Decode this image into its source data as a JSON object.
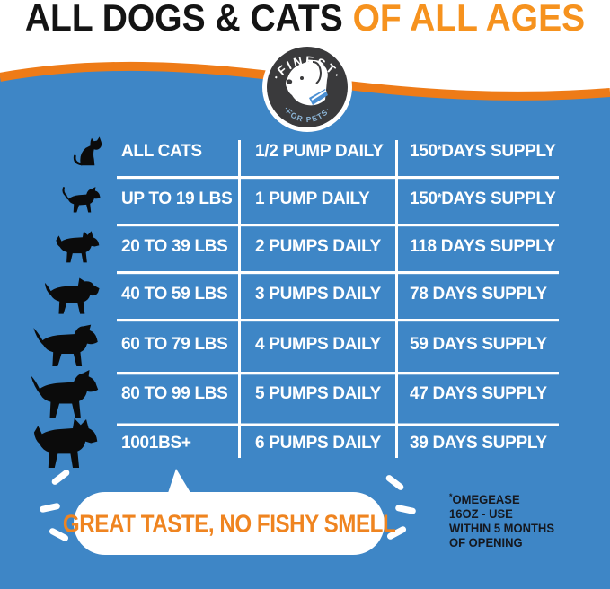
{
  "title": {
    "black": "ALL DOGS & CATS",
    "orange": "OF ALL AGES"
  },
  "logo": {
    "top_text": "·FINEST·",
    "bottom_text": "·FOR PETS·",
    "icon": "dog-head-icon"
  },
  "table": {
    "rows": [
      {
        "icon": "cat",
        "weight": "ALL CATS",
        "dose": "1/2 PUMP DAILY",
        "supply": "150* DAYS SUPPLY"
      },
      {
        "icon": "dog-small",
        "weight": "UP TO 19 LBS",
        "dose": "1 PUMP DAILY",
        "supply": "150* DAYS SUPPLY"
      },
      {
        "icon": "dog-terrier",
        "weight": "20 TO 39 LBS",
        "dose": "2 PUMPS DAILY",
        "supply": "118 DAYS SUPPLY"
      },
      {
        "icon": "dog-schnauzer",
        "weight": "40 TO 59 LBS",
        "dose": "3 PUMPS DAILY",
        "supply": "78 DAYS SUPPLY"
      },
      {
        "icon": "dog-airedale",
        "weight": "60 TO 79 LBS",
        "dose": "4 PUMPS DAILY",
        "supply": "59 DAYS SUPPLY"
      },
      {
        "icon": "dog-retriever",
        "weight": "80 TO 99 LBS",
        "dose": "5 PUMPS DAILY",
        "supply": "47 DAYS SUPPLY"
      },
      {
        "icon": "dog-large",
        "weight": "1001BS+",
        "dose": "6 PUMPS DAILY",
        "supply": "39 DAYS SUPPLY"
      }
    ]
  },
  "bubble": {
    "text": "GREAT TASTE, NO FISHY SMELL"
  },
  "footnote": {
    "lines": [
      "*OMEGEASE",
      "16OZ - USE",
      "WITHIN 5 MONTHS",
      "OF OPENING"
    ]
  },
  "colors": {
    "blue": "#3e86c6",
    "orange": "#ee7b17",
    "title_orange": "#f6921e",
    "bubble_text": "#ef8420",
    "logo_dark": "#3a3a3c",
    "logo_subtext": "#8db6d8",
    "collar_blue": "#4a8fd3"
  }
}
